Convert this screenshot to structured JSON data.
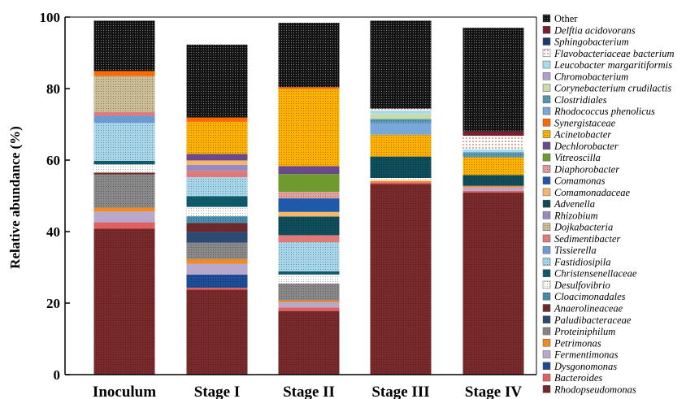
{
  "chart_data": {
    "type": "stacked-bar",
    "title": "",
    "xlabel": "",
    "ylabel": "Relative abundance (%)",
    "ylim": [
      0,
      100
    ],
    "yticks": [
      0,
      20,
      40,
      60,
      80,
      100
    ],
    "categories": [
      "Inoculum",
      "Stage I",
      "Stage II",
      "Stage III",
      "Stage IV"
    ],
    "legend_position": "right",
    "series": [
      {
        "name": "Rhodopseudomonas",
        "color": "#7a2a2a",
        "pattern": "dots-dark",
        "values": [
          40.8,
          23.8,
          17.8,
          53.3,
          50.9
        ]
      },
      {
        "name": "Bacteroides",
        "color": "#e06060",
        "pattern": "solid",
        "values": [
          1.8,
          0.5,
          1.0,
          0.5,
          0.5
        ]
      },
      {
        "name": "Dysgonomonas",
        "color": "#1f4e9a",
        "pattern": "dots-dark",
        "values": [
          0.0,
          3.7,
          0.0,
          0.0,
          0.0
        ]
      },
      {
        "name": "Fermentimonas",
        "color": "#b8a8cc",
        "pattern": "solid",
        "values": [
          3.0,
          3.0,
          1.4,
          0.0,
          1.0
        ]
      },
      {
        "name": "Petrimonas",
        "color": "#f08a24",
        "pattern": "solid",
        "values": [
          1.1,
          1.3,
          0.5,
          0.4,
          0.4
        ]
      },
      {
        "name": "Proteiniphilum",
        "color": "#8a8a8a",
        "pattern": "dots-dark",
        "values": [
          9.3,
          4.6,
          4.8,
          0.0,
          0.0
        ]
      },
      {
        "name": "Paludibacteraceae",
        "color": "#2c4a73",
        "pattern": "solid",
        "values": [
          0.0,
          3.0,
          0.0,
          0.0,
          0.0
        ]
      },
      {
        "name": "Anaerolineaceae",
        "color": "#6e2a2a",
        "pattern": "solid",
        "values": [
          0.5,
          2.5,
          0.0,
          0.0,
          0.0
        ]
      },
      {
        "name": "Cloacimonadales",
        "color": "#4a8fb0",
        "pattern": "dots-dark",
        "values": [
          0.0,
          1.9,
          0.0,
          0.0,
          0.0
        ]
      },
      {
        "name": "Desulfovibrio",
        "color": "#ffffff",
        "pattern": "dots-dark",
        "values": [
          2.3,
          2.6,
          2.5,
          0.8,
          0.0
        ]
      },
      {
        "name": "Christensenellaceae",
        "color": "#0e5a6a",
        "pattern": "solid",
        "values": [
          1.0,
          3.0,
          0.9,
          0.0,
          0.0
        ]
      },
      {
        "name": "Fastidiosipila",
        "color": "#a9d8ec",
        "pattern": "dots-dark",
        "values": [
          10.6,
          5.3,
          8.1,
          0.0,
          0.0
        ]
      },
      {
        "name": "Tissierella",
        "color": "#6a9bd3",
        "pattern": "solid",
        "values": [
          2.0,
          0.0,
          0.0,
          0.0,
          0.0
        ]
      },
      {
        "name": "Sedimentibacter",
        "color": "#e07a7a",
        "pattern": "solid",
        "values": [
          1.0,
          1.8,
          2.0,
          0.0,
          0.0
        ]
      },
      {
        "name": "Dojkabacteria",
        "color": "#cdbf97",
        "pattern": "dots-dark",
        "values": [
          10.1,
          0.0,
          0.0,
          0.0,
          0.0
        ]
      },
      {
        "name": "Rhizobium",
        "color": "#9a89be",
        "pattern": "solid",
        "values": [
          0.0,
          1.7,
          0.0,
          0.0,
          0.0
        ]
      },
      {
        "name": "Advenella",
        "color": "#0f4f5c",
        "pattern": "dots-dark",
        "values": [
          0.0,
          0.0,
          5.2,
          6.0,
          3.0
        ]
      },
      {
        "name": "Comamonadaceae",
        "color": "#f5b86a",
        "pattern": "solid",
        "values": [
          0.0,
          1.2,
          1.3,
          0.0,
          0.0
        ]
      },
      {
        "name": "Comamonas",
        "color": "#1f5aa8",
        "pattern": "solid",
        "values": [
          0.0,
          0.0,
          3.8,
          0.0,
          0.0
        ]
      },
      {
        "name": "Diaphorobacter",
        "color": "#e8a0a0",
        "pattern": "dots-dark",
        "values": [
          0.0,
          0.0,
          1.8,
          0.0,
          0.0
        ]
      },
      {
        "name": "Vitreoscilla",
        "color": "#6e9a2e",
        "pattern": "solid",
        "values": [
          0.0,
          0.0,
          5.0,
          0.0,
          0.0
        ]
      },
      {
        "name": "Dechlorobacter",
        "color": "#6a4a8a",
        "pattern": "solid",
        "values": [
          0.0,
          1.8,
          2.2,
          0.0,
          0.0
        ]
      },
      {
        "name": "Acinetobacter",
        "color": "#ffb300",
        "pattern": "dots-dark",
        "values": [
          0.0,
          9.0,
          21.6,
          6.1,
          5.0
        ]
      },
      {
        "name": "Synergistaceae",
        "color": "#ff6a00",
        "pattern": "solid",
        "values": [
          1.4,
          1.2,
          0.5,
          0.0,
          0.0
        ]
      },
      {
        "name": "Rhodococcus phenolicus",
        "color": "#7aa7d9",
        "pattern": "solid",
        "values": [
          0.0,
          0.0,
          0.0,
          3.2,
          0.0
        ]
      },
      {
        "name": "Clostridiales",
        "color": "#5a9ab8",
        "pattern": "dots-dark",
        "values": [
          0.0,
          0.0,
          0.0,
          1.2,
          1.4
        ]
      },
      {
        "name": "Corynebacterium crudilactis",
        "color": "#c8dca8",
        "pattern": "solid",
        "values": [
          0.0,
          0.0,
          0.0,
          1.4,
          0.0
        ]
      },
      {
        "name": "Chromobacterium",
        "color": "#b0a0cc",
        "pattern": "solid",
        "values": [
          0.0,
          0.0,
          0.0,
          0.0,
          0.0
        ]
      },
      {
        "name": "Leucobacter margaritiformis",
        "color": "#a8dced",
        "pattern": "solid",
        "values": [
          0.0,
          0.0,
          0.0,
          1.0,
          0.8
        ]
      },
      {
        "name": "Flavobacteriaceae bacterium",
        "color": "#ffffff",
        "pattern": "dots-red",
        "values": [
          0.0,
          0.0,
          0.0,
          0.5,
          3.8
        ]
      },
      {
        "name": "Sphingobacterium",
        "color": "#1f3a66",
        "pattern": "solid",
        "values": [
          0.0,
          0.0,
          0.0,
          0.0,
          0.0
        ]
      },
      {
        "name": "Delftia acidovorans",
        "color": "#7a1f2e",
        "pattern": "solid",
        "values": [
          0.0,
          0.0,
          0.0,
          0.0,
          1.2
        ]
      },
      {
        "name": "Other",
        "color": "#111111",
        "pattern": "dots-light",
        "values": [
          14.1,
          20.4,
          18.0,
          24.6,
          29.0
        ]
      }
    ]
  }
}
